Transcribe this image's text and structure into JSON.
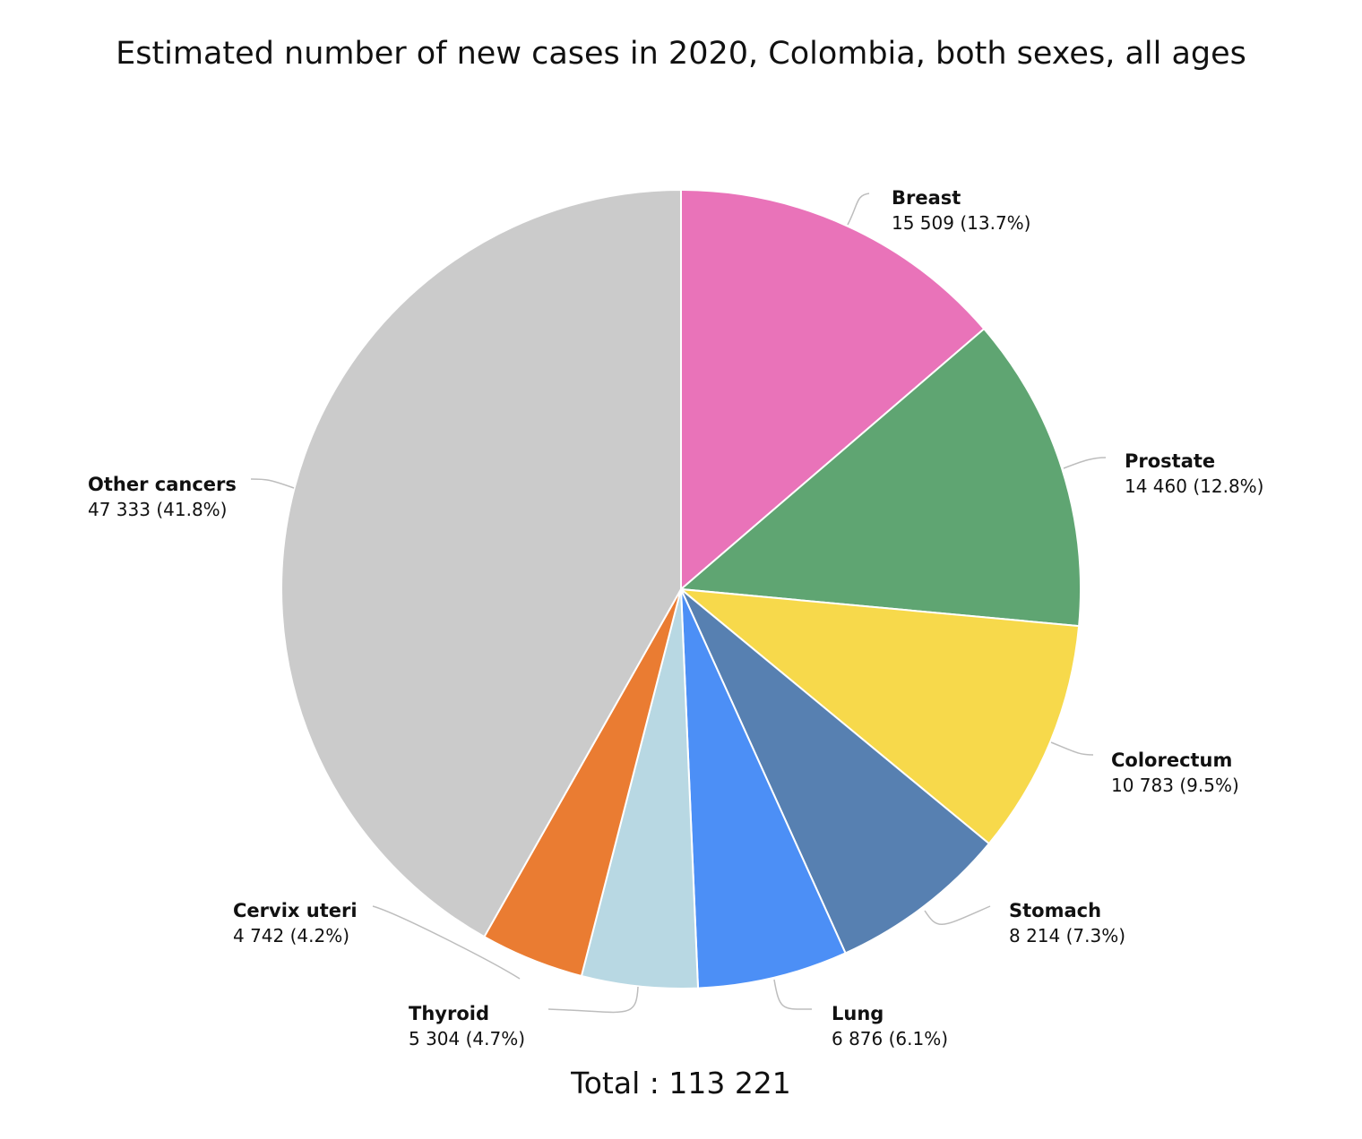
{
  "chart_data": {
    "type": "pie",
    "title": "Estimated number of new cases in 2020, Colombia, both sexes, all ages",
    "total_label": "Total : 113 221",
    "total": 113221,
    "slices": [
      {
        "name": "Breast",
        "value": 15509,
        "value_text": "15 509 (13.7%)",
        "color": "#e973b9"
      },
      {
        "name": "Prostate",
        "value": 14460,
        "value_text": "14 460 (12.8%)",
        "color": "#5fa572"
      },
      {
        "name": "Colorectum",
        "value": 10783,
        "value_text": "10 783 (9.5%)",
        "color": "#f7d94b"
      },
      {
        "name": "Stomach",
        "value": 8214,
        "value_text": "8 214 (7.3%)",
        "color": "#5780b1"
      },
      {
        "name": "Lung",
        "value": 6876,
        "value_text": "6 876 (6.1%)",
        "color": "#4c8ff6"
      },
      {
        "name": "Thyroid",
        "value": 5304,
        "value_text": "5 304 (4.7%)",
        "color": "#b8d8e3"
      },
      {
        "name": "Cervix uteri",
        "value": 4742,
        "value_text": "4 742 (4.2%)",
        "color": "#ea7c32"
      },
      {
        "name": "Other cancers",
        "value": 47333,
        "value_text": "47 333 (41.8%)",
        "color": "#cbcbcb"
      }
    ]
  }
}
